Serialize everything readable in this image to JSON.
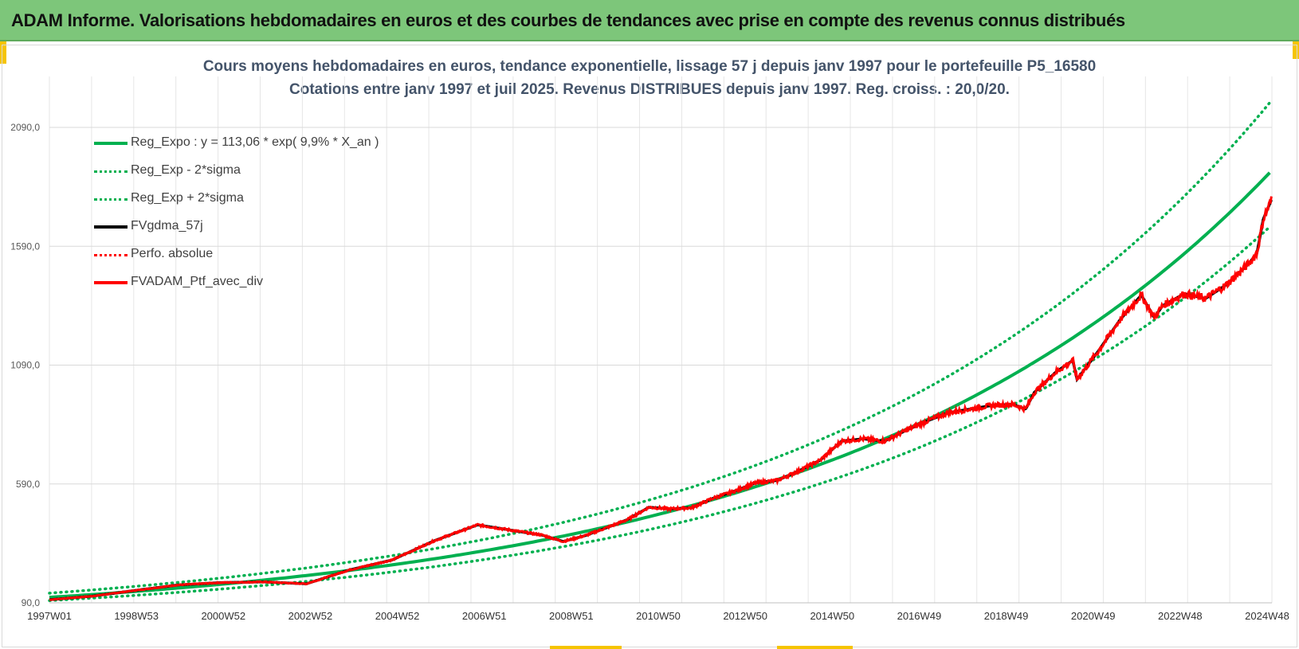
{
  "header": {
    "title": "ADAM Informe. Valorisations hebdomadaires en euros et des courbes de tendances avec prise en compte des revenus connus distribués"
  },
  "colors": {
    "header_bg": "#7dc67a",
    "accent_yellow": "#f5c400",
    "title_text": "#44546a",
    "reg_expo": "#00b050",
    "fvgdma": "#000000",
    "fvadam": "#ff0000"
  },
  "chart_data": {
    "type": "line",
    "title_line1": "Cours moyens hebdomadaires  en euros, tendance exponentielle, lissage 57 j depuis janv 1997 pour le portefeuille P5_16580",
    "title_line2": "Cotations entre janv 1997 et juil 2025. Revenus DISTRIBUES depuis janv 1997. Reg. croiss. : 20,0/20.",
    "x_tick_labels": [
      "1997W01",
      "1998W53",
      "2000W52",
      "2002W52",
      "2004W52",
      "2006W51",
      "2008W51",
      "2010W50",
      "2012W50",
      "2014W50",
      "2016W49",
      "2018W49",
      "2020W49",
      "2022W48",
      "2024W48"
    ],
    "x_range_years": [
      1997.0,
      2025.55
    ],
    "y_tick_labels": [
      "90,0",
      "590,0",
      "1090,0",
      "1590,0",
      "2090,0"
    ],
    "y_ticks": [
      90,
      590,
      1090,
      1590,
      2090
    ],
    "ylim": [
      90,
      2090
    ],
    "grid": true,
    "legend_position": "top-left",
    "series": [
      {
        "name": "Reg_Expo : y = 113,06 * exp( 9,9% *  X_an )",
        "style": "solid-green",
        "a": 113.06,
        "rate": 0.099
      },
      {
        "name": "Reg_Exp - 2*sigma",
        "style": "dotted-green",
        "factor": 0.88
      },
      {
        "name": "Reg_Exp + 2*sigma",
        "style": "dotted-green",
        "factor": 1.155
      },
      {
        "name": "FVgdma_57j",
        "style": "solid-black"
      },
      {
        "name": "Perfo. absolue",
        "style": "dotted-red"
      },
      {
        "name": "FVADAM_Ptf_avec_div",
        "style": "solid-red"
      }
    ],
    "portfolio_points": [
      [
        1997.0,
        103
      ],
      [
        1998.0,
        118
      ],
      [
        1999.0,
        142
      ],
      [
        2000.0,
        165
      ],
      [
        2001.0,
        175
      ],
      [
        2002.0,
        178
      ],
      [
        2003.0,
        170
      ],
      [
        2004.0,
        228
      ],
      [
        2005.0,
        270
      ],
      [
        2006.0,
        352
      ],
      [
        2007.0,
        418
      ],
      [
        2007.8,
        395
      ],
      [
        2008.5,
        375
      ],
      [
        2009.0,
        348
      ],
      [
        2009.5,
        372
      ],
      [
        2010.0,
        405
      ],
      [
        2010.5,
        440
      ],
      [
        2011.0,
        492
      ],
      [
        2011.5,
        485
      ],
      [
        2012.0,
        490
      ],
      [
        2012.5,
        530
      ],
      [
        2013.0,
        560
      ],
      [
        2013.5,
        595
      ],
      [
        2014.0,
        605
      ],
      [
        2014.5,
        645
      ],
      [
        2015.0,
        690
      ],
      [
        2015.5,
        770
      ],
      [
        2016.0,
        780
      ],
      [
        2016.5,
        770
      ],
      [
        2017.0,
        815
      ],
      [
        2017.5,
        855
      ],
      [
        2018.0,
        890
      ],
      [
        2018.5,
        905
      ],
      [
        2019.0,
        920
      ],
      [
        2019.5,
        925
      ],
      [
        2019.8,
        905
      ],
      [
        2020.0,
        975
      ],
      [
        2020.5,
        1060
      ],
      [
        2020.9,
        1110
      ],
      [
        2021.0,
        1030
      ],
      [
        2021.5,
        1150
      ],
      [
        2022.0,
        1280
      ],
      [
        2022.5,
        1385
      ],
      [
        2022.8,
        1290
      ],
      [
        2023.0,
        1340
      ],
      [
        2023.5,
        1390
      ],
      [
        2024.0,
        1370
      ],
      [
        2024.5,
        1430
      ],
      [
        2025.0,
        1515
      ],
      [
        2025.2,
        1560
      ],
      [
        2025.35,
        1705
      ],
      [
        2025.55,
        1790
      ]
    ]
  }
}
